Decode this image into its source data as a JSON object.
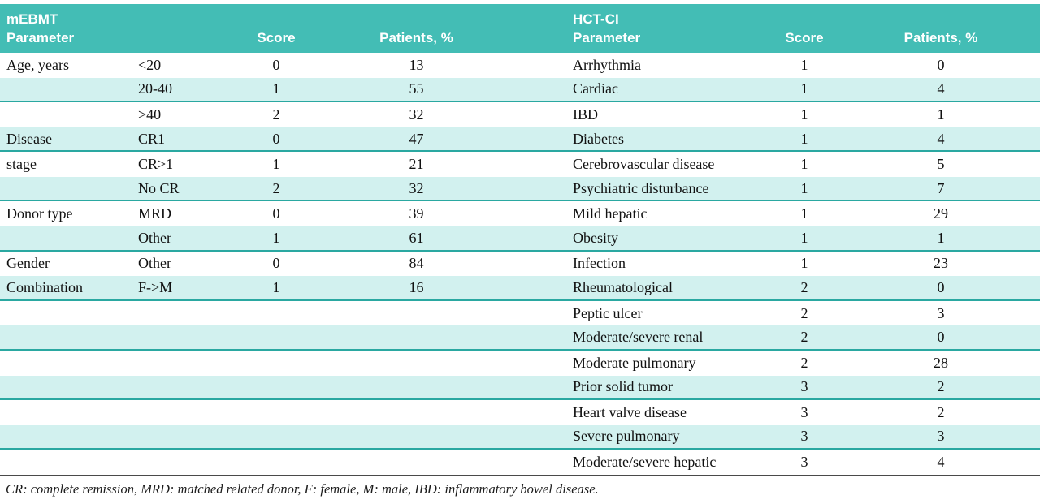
{
  "table": {
    "left": {
      "header": {
        "title_line1": "mEBMT",
        "title_line2": "Parameter",
        "score": "Score",
        "patients": "Patients, %"
      }
    },
    "right": {
      "header": {
        "title_line1": "HCT-CI",
        "title_line2": "Parameter",
        "score": "Score",
        "patients": "Patients, %"
      }
    },
    "rows": [
      {
        "l_param": "Age, years",
        "l_sub": "<20",
        "l_score": "0",
        "l_pat": "13",
        "r_param": "Arrhythmia",
        "r_score": "1",
        "r_pat": "0",
        "shaded": false
      },
      {
        "l_param": "",
        "l_sub": "20-40",
        "l_score": "1",
        "l_pat": "55",
        "r_param": "Cardiac",
        "r_score": "1",
        "r_pat": "4",
        "shaded": true
      },
      {
        "l_param": "",
        "l_sub": ">40",
        "l_score": "2",
        "l_pat": "32",
        "r_param": "IBD",
        "r_score": "1",
        "r_pat": "1",
        "shaded": false
      },
      {
        "l_param": "Disease",
        "l_sub": "CR1",
        "l_score": "0",
        "l_pat": "47",
        "r_param": "Diabetes",
        "r_score": "1",
        "r_pat": "4",
        "shaded": true
      },
      {
        "l_param": "stage",
        "l_sub": "CR>1",
        "l_score": "1",
        "l_pat": "21",
        "r_param": "Cerebrovascular disease",
        "r_score": "1",
        "r_pat": "5",
        "shaded": false
      },
      {
        "l_param": "",
        "l_sub": "No CR",
        "l_score": "2",
        "l_pat": "32",
        "r_param": "Psychiatric disturbance",
        "r_score": "1",
        "r_pat": "7",
        "shaded": true
      },
      {
        "l_param": "Donor type",
        "l_sub": "MRD",
        "l_score": "0",
        "l_pat": "39",
        "r_param": "Mild hepatic",
        "r_score": "1",
        "r_pat": "29",
        "shaded": false
      },
      {
        "l_param": "",
        "l_sub": "Other",
        "l_score": "1",
        "l_pat": "61",
        "r_param": "Obesity",
        "r_score": "1",
        "r_pat": "1",
        "shaded": true
      },
      {
        "l_param": "Gender",
        "l_sub": "Other",
        "l_score": "0",
        "l_pat": "84",
        "r_param": "Infection",
        "r_score": "1",
        "r_pat": "23",
        "shaded": false
      },
      {
        "l_param": "Combination",
        "l_sub": "F->M",
        "l_score": "1",
        "l_pat": "16",
        "r_param": "Rheumatological",
        "r_score": "2",
        "r_pat": "0",
        "shaded": true
      },
      {
        "l_param": "",
        "l_sub": "",
        "l_score": "",
        "l_pat": "",
        "r_param": "Peptic ulcer",
        "r_score": "2",
        "r_pat": "3",
        "shaded": false
      },
      {
        "l_param": "",
        "l_sub": "",
        "l_score": "",
        "l_pat": "",
        "r_param": "Moderate/severe renal",
        "r_score": "2",
        "r_pat": "0",
        "shaded": true
      },
      {
        "l_param": "",
        "l_sub": "",
        "l_score": "",
        "l_pat": "",
        "r_param": "Moderate pulmonary",
        "r_score": "2",
        "r_pat": "28",
        "shaded": false
      },
      {
        "l_param": "",
        "l_sub": "",
        "l_score": "",
        "l_pat": "",
        "r_param": "Prior solid tumor",
        "r_score": "3",
        "r_pat": "2",
        "shaded": true
      },
      {
        "l_param": "",
        "l_sub": "",
        "l_score": "",
        "l_pat": "",
        "r_param": "Heart valve disease",
        "r_score": "3",
        "r_pat": "2",
        "shaded": false
      },
      {
        "l_param": "",
        "l_sub": "",
        "l_score": "",
        "l_pat": "",
        "r_param": "Severe pulmonary",
        "r_score": "3",
        "r_pat": "3",
        "shaded": true
      },
      {
        "l_param": "",
        "l_sub": "",
        "l_score": "",
        "l_pat": "",
        "r_param": "Moderate/severe hepatic",
        "r_score": "3",
        "r_pat": "4",
        "shaded": false
      }
    ],
    "footnote": "CR: complete remission, MRD: matched related donor, F: female, M: male, IBD: inflammatory bowel disease.",
    "colors": {
      "header_bg": "#43bdb5",
      "row_shaded": "#d2f1ef",
      "separator": "#2aa8a1",
      "bottom_border": "#4a4a4a",
      "header_text": "#ffffff",
      "body_text": "#111111"
    }
  }
}
